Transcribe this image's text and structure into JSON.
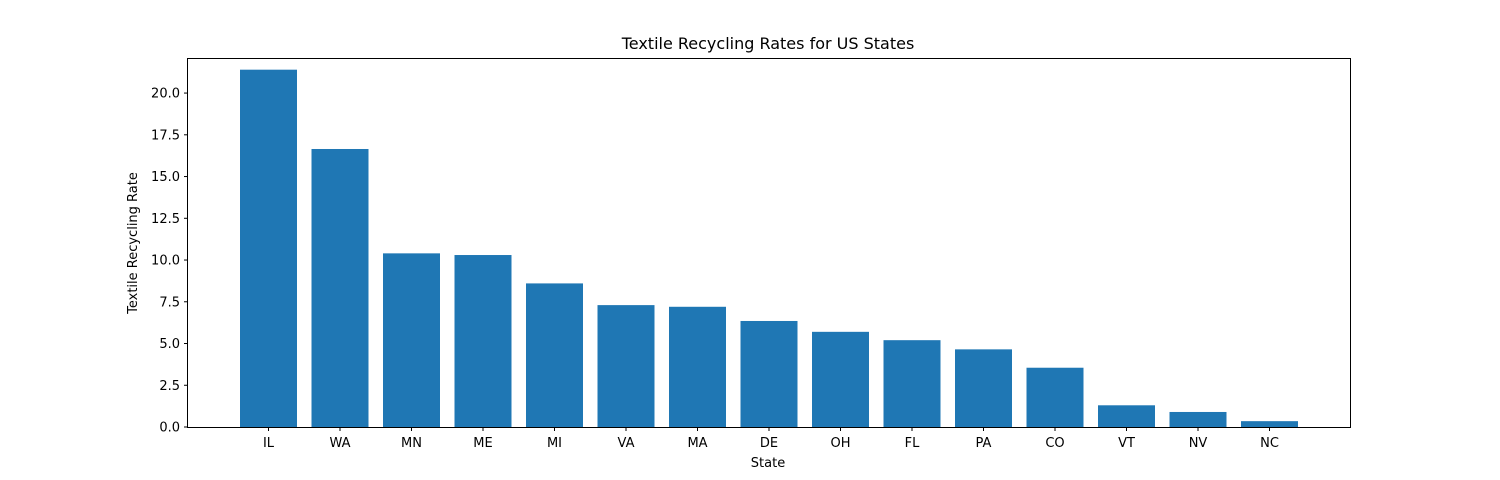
{
  "chart_data": {
    "type": "bar",
    "title": "Textile Recycling Rates for US States",
    "xlabel": "State",
    "ylabel": "Textile Recycling Rate",
    "categories": [
      "IL",
      "WA",
      "MN",
      "ME",
      "MI",
      "VA",
      "MA",
      "DE",
      "OH",
      "FL",
      "PA",
      "CO",
      "VT",
      "NV",
      "NC"
    ],
    "values": [
      21.4,
      16.65,
      10.4,
      10.3,
      8.6,
      7.3,
      7.2,
      6.35,
      5.7,
      5.2,
      4.65,
      3.55,
      1.3,
      0.9,
      0.35
    ],
    "ylim": [
      0,
      22.1
    ],
    "yticks": [
      0.0,
      2.5,
      5.0,
      7.5,
      10.0,
      12.5,
      15.0,
      17.5,
      20.0
    ],
    "ytick_labels": [
      "0.0",
      "2.5",
      "5.0",
      "7.5",
      "10.0",
      "12.5",
      "15.0",
      "17.5",
      "20.0"
    ],
    "bar_color": "#1f77b4",
    "grid": false,
    "legend": "none"
  }
}
